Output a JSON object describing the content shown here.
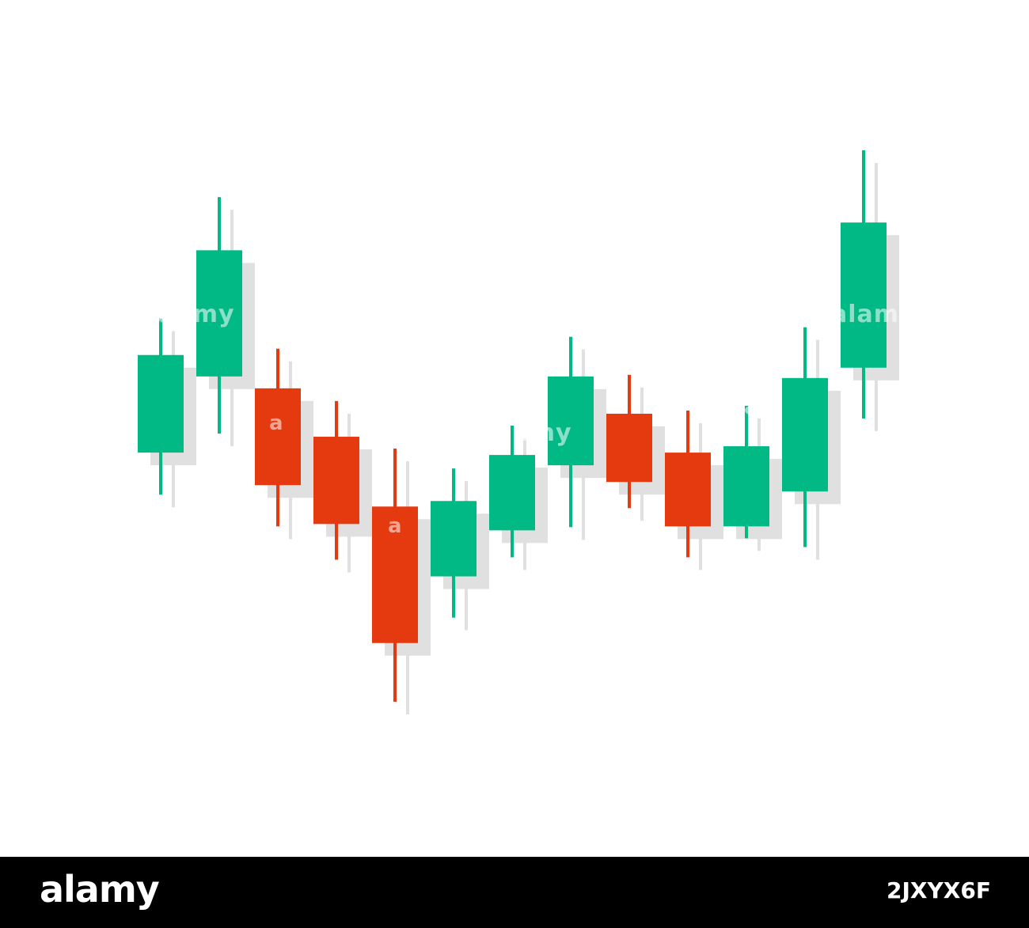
{
  "colors": {
    "background": "#ffffff",
    "up": "#00b985",
    "down": "#e5390f",
    "shadow": "#e0e0e0",
    "footer_background": "#000000",
    "footer_text": "#ffffff"
  },
  "chart_data": {
    "type": "candlestick",
    "title": "",
    "xlabel": "",
    "ylabel": "",
    "grid": false,
    "axes_visible": false,
    "candles": [
      {
        "direction": "up",
        "open": 51.9,
        "close": 64.2,
        "low": 46.6,
        "high": 68.8
      },
      {
        "direction": "up",
        "open": 61.5,
        "close": 77.4,
        "low": 54.3,
        "high": 84.1
      },
      {
        "direction": "down",
        "open": 60.0,
        "close": 47.8,
        "low": 42.6,
        "high": 65.0
      },
      {
        "direction": "down",
        "open": 53.9,
        "close": 42.9,
        "low": 38.4,
        "high": 58.4
      },
      {
        "direction": "down",
        "open": 45.1,
        "close": 27.9,
        "low": 20.5,
        "high": 52.4
      },
      {
        "direction": "up",
        "open": 36.3,
        "close": 45.8,
        "low": 31.1,
        "high": 49.9
      },
      {
        "direction": "up",
        "open": 42.1,
        "close": 51.6,
        "low": 38.7,
        "high": 55.3
      },
      {
        "direction": "up",
        "open": 50.3,
        "close": 61.5,
        "low": 42.5,
        "high": 66.5
      },
      {
        "direction": "down",
        "open": 56.8,
        "close": 48.2,
        "low": 44.9,
        "high": 61.7
      },
      {
        "direction": "down",
        "open": 51.9,
        "close": 42.6,
        "low": 38.7,
        "high": 57.2
      },
      {
        "direction": "up",
        "open": 42.6,
        "close": 52.7,
        "low": 41.1,
        "high": 57.8
      },
      {
        "direction": "up",
        "open": 47.0,
        "close": 61.3,
        "low": 40.0,
        "high": 67.7
      },
      {
        "direction": "up",
        "open": 62.6,
        "close": 80.9,
        "low": 56.2,
        "high": 90.0
      }
    ]
  },
  "watermarks": [
    "alamy",
    "a",
    "a",
    "alamy",
    "a",
    "alamy"
  ],
  "footer": {
    "logo": "alamy",
    "image_id": "2JXYX6F"
  }
}
